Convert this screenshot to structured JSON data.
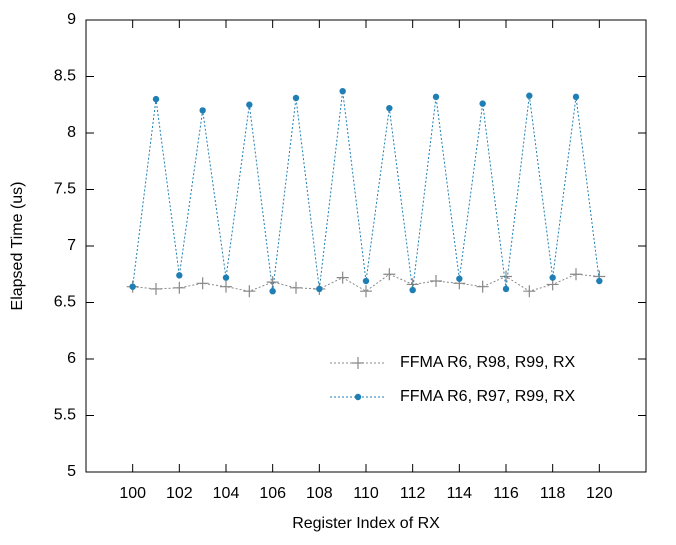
{
  "chart_data": {
    "type": "line",
    "xlabel": "Register Index of RX",
    "ylabel": "Elapsed Time (us)",
    "x": [
      100,
      101,
      102,
      103,
      104,
      105,
      106,
      107,
      108,
      109,
      110,
      111,
      112,
      113,
      114,
      115,
      116,
      117,
      118,
      119,
      120
    ],
    "series": [
      {
        "name": "FFMA R6, R98, R99, RX",
        "color": "#888888",
        "marker": "plus",
        "values": [
          6.64,
          6.62,
          6.63,
          6.67,
          6.64,
          6.6,
          6.68,
          6.63,
          6.62,
          6.72,
          6.6,
          6.75,
          6.66,
          6.69,
          6.67,
          6.64,
          6.73,
          6.6,
          6.66,
          6.75,
          6.73
        ]
      },
      {
        "name": "FFMA R6, R97, R99, RX",
        "color": "#1f7fb4",
        "marker": "circle",
        "values": [
          6.64,
          8.3,
          6.74,
          8.2,
          6.72,
          8.25,
          6.6,
          8.31,
          6.62,
          8.37,
          6.69,
          8.22,
          6.61,
          8.32,
          6.71,
          8.26,
          6.62,
          8.33,
          6.72,
          8.32,
          6.69
        ]
      }
    ],
    "xlim": [
      98,
      122
    ],
    "xticks": [
      100,
      102,
      104,
      106,
      108,
      110,
      112,
      114,
      116,
      118,
      120
    ],
    "ylim": [
      5,
      9
    ],
    "yticks": [
      5,
      5.5,
      6,
      6.5,
      7,
      7.5,
      8,
      8.5,
      9
    ],
    "grid": false,
    "legend": "lower right"
  }
}
